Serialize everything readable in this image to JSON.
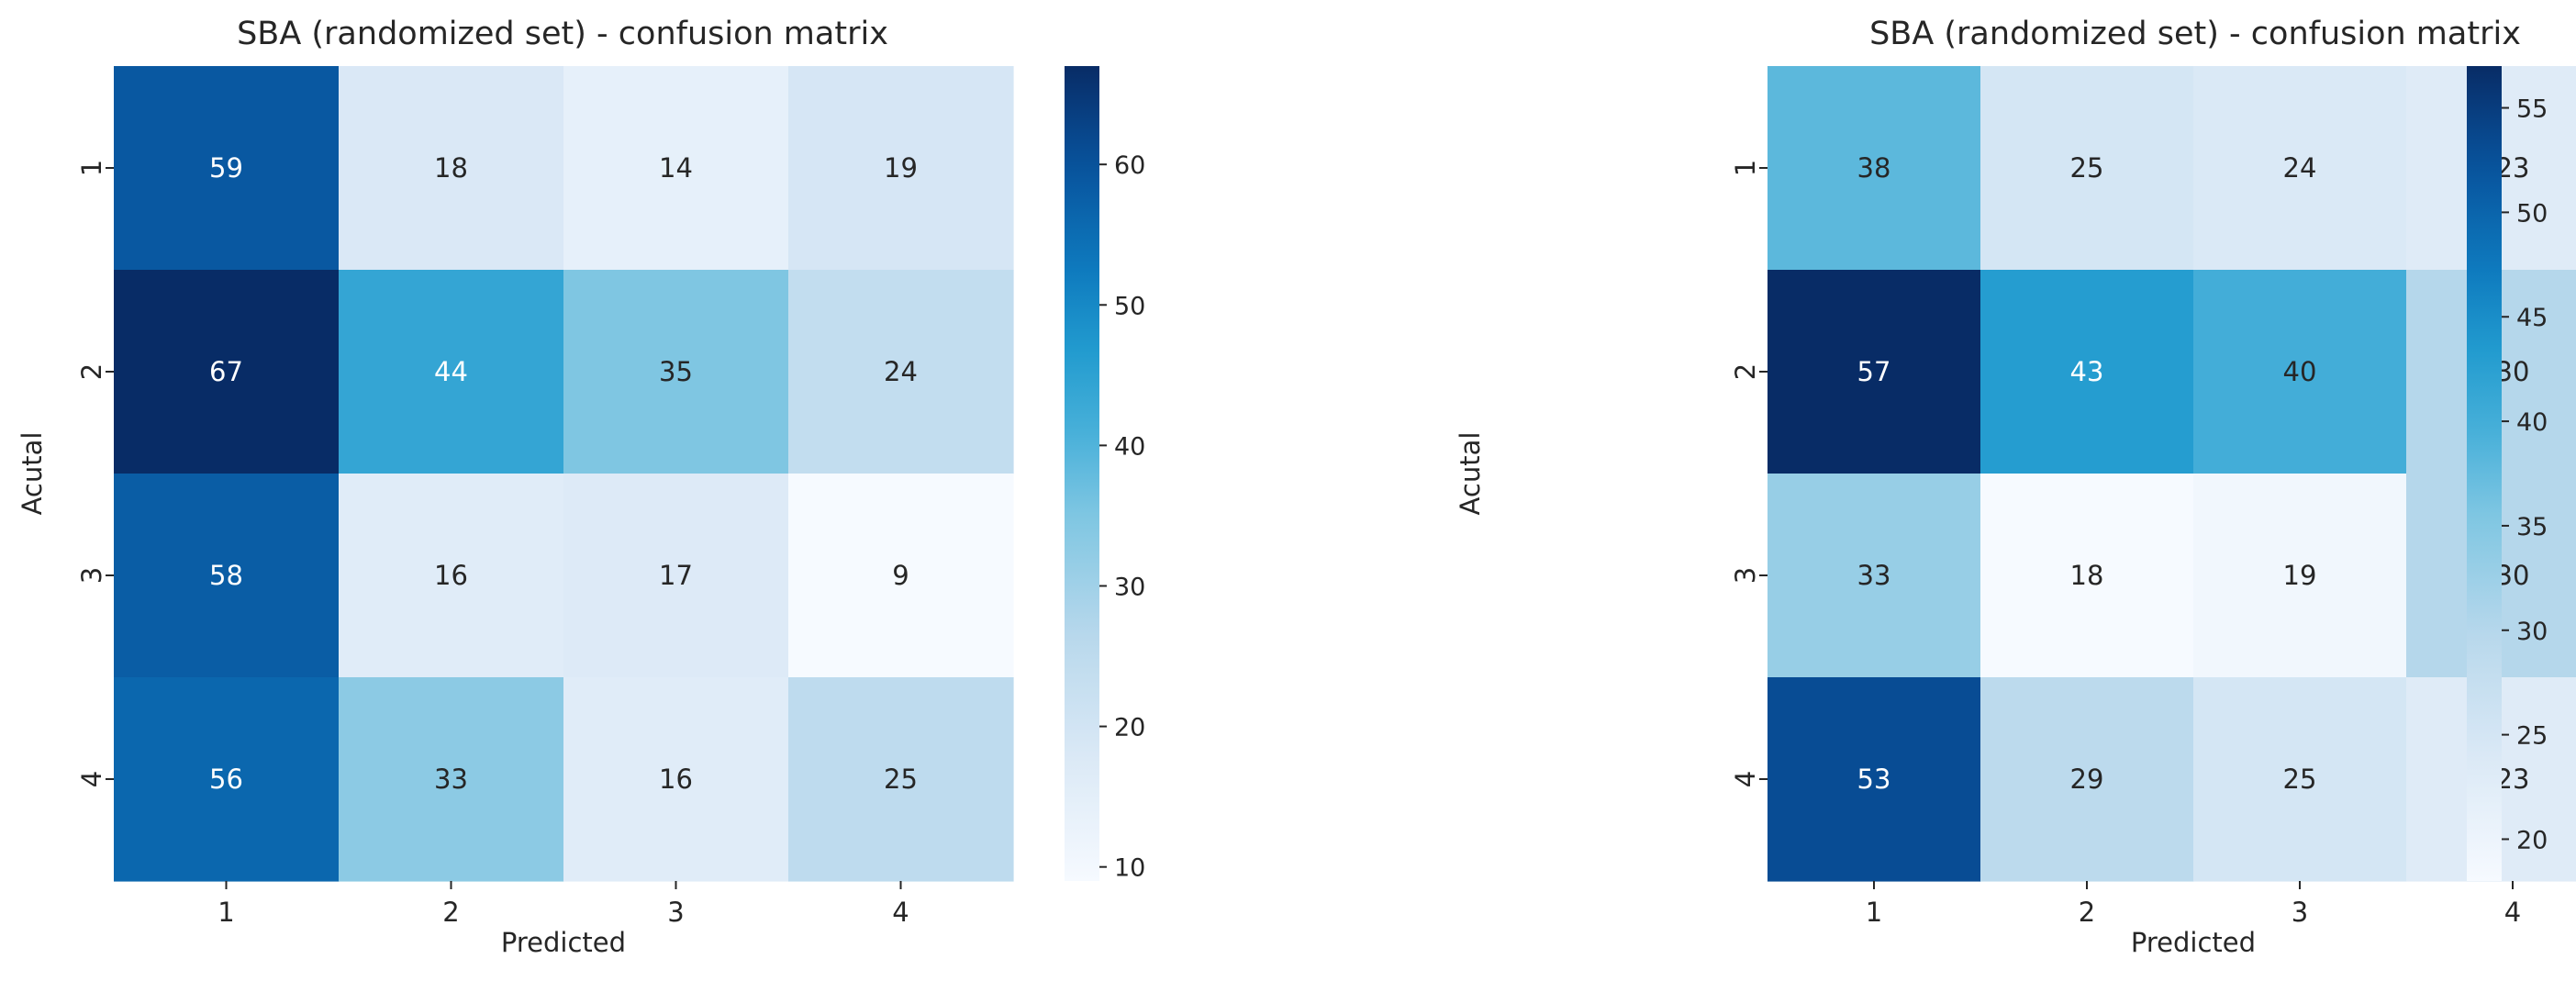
{
  "chart_data": [
    {
      "type": "heatmap",
      "title": "SBA (randomized set) - confusion matrix",
      "xlabel": "Predicted",
      "ylabel": "Acutal",
      "x_categories": [
        "1",
        "2",
        "3",
        "4"
      ],
      "y_categories": [
        "1",
        "2",
        "3",
        "4"
      ],
      "values": [
        [
          59,
          18,
          14,
          19
        ],
        [
          67,
          44,
          35,
          24
        ],
        [
          58,
          16,
          17,
          9
        ],
        [
          56,
          33,
          16,
          25
        ]
      ],
      "colormap": "Blues",
      "vmin": 9,
      "vmax": 67,
      "colorbar_ticks": [
        10,
        20,
        30,
        40,
        50,
        60
      ]
    },
    {
      "type": "heatmap",
      "title": "SBA (randomized set) - confusion matrix",
      "xlabel": "Predicted",
      "ylabel": "Acutal",
      "x_categories": [
        "1",
        "2",
        "3",
        "4"
      ],
      "y_categories": [
        "1",
        "2",
        "3",
        "4"
      ],
      "values": [
        [
          38,
          25,
          24,
          23
        ],
        [
          57,
          43,
          40,
          30
        ],
        [
          33,
          18,
          19,
          30
        ],
        [
          53,
          29,
          25,
          23
        ]
      ],
      "colormap": "Blues",
      "vmin": 18,
      "vmax": 57,
      "colorbar_ticks": [
        20,
        25,
        30,
        35,
        40,
        45,
        50,
        55
      ]
    }
  ],
  "colors": {
    "text_dark": "#262626",
    "text_light": "#ffffff",
    "axis": "#262626"
  }
}
